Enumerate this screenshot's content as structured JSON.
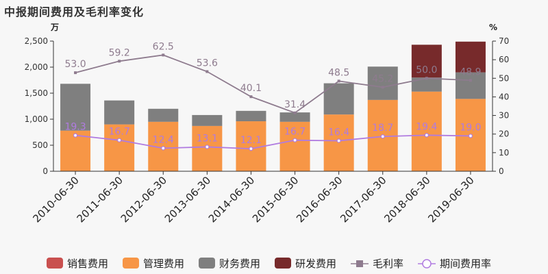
{
  "chart_data": {
    "type": "bar",
    "title": "中报期间费用及毛利率变化",
    "left_unit": "万",
    "right_unit": "%",
    "categories": [
      "2010-06-30",
      "2011-06-30",
      "2012-06-30",
      "2013-06-30",
      "2014-06-30",
      "2015-06-30",
      "2016-06-30",
      "2017-06-30",
      "2018-06-30",
      "2019-06-30"
    ],
    "ylim_left": [
      0,
      2500
    ],
    "yticks_left": [
      0,
      500,
      1000,
      1500,
      2000,
      2500
    ],
    "ylim_right": [
      0,
      70
    ],
    "yticks_right": [
      0,
      10,
      20,
      30,
      40,
      50,
      60,
      70
    ],
    "stacked": true,
    "bar_series": [
      {
        "name": "销售费用",
        "color": "#c9504f",
        "values": [
          0,
          0,
          0,
          0,
          0,
          0,
          0,
          0,
          0,
          0
        ]
      },
      {
        "name": "管理费用",
        "color": "#f79646",
        "values": [
          780,
          900,
          950,
          870,
          960,
          950,
          1090,
          1370,
          1530,
          1390
        ]
      },
      {
        "name": "财务费用",
        "color": "#7f7f7f",
        "values": [
          900,
          460,
          250,
          210,
          200,
          180,
          600,
          640,
          270,
          510
        ]
      },
      {
        "name": "研发费用",
        "color": "#772a2b",
        "values": [
          0,
          0,
          0,
          0,
          0,
          0,
          0,
          0,
          630,
          590
        ]
      }
    ],
    "line_series": [
      {
        "name": "毛利率",
        "color": "#8e7b8e",
        "marker": "square",
        "axis": "right",
        "values": [
          53.0,
          59.2,
          62.5,
          53.6,
          40.1,
          31.4,
          48.5,
          45.2,
          50.0,
          48.9
        ]
      },
      {
        "name": "期间费用率",
        "color": "#b07be0",
        "marker": "circle",
        "axis": "right",
        "values": [
          19.3,
          16.7,
          12.4,
          13.1,
          12.1,
          16.7,
          16.4,
          18.7,
          19.4,
          19.0
        ]
      }
    ]
  }
}
